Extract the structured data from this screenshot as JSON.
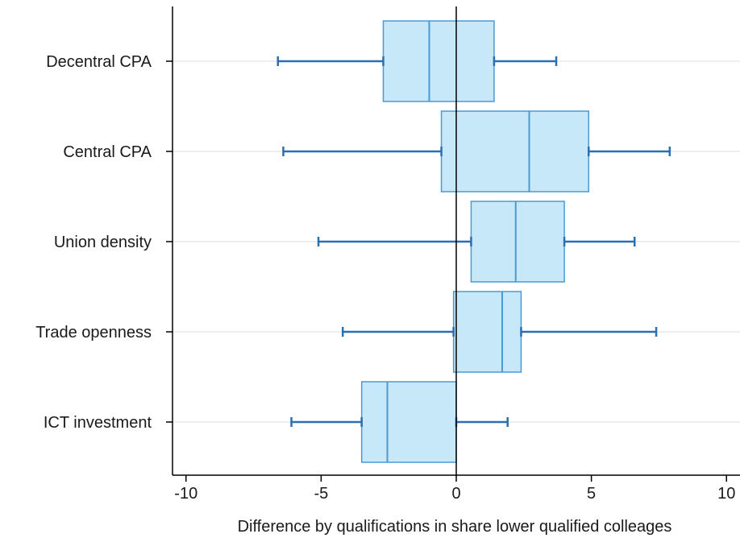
{
  "chart_data": {
    "type": "boxplot",
    "orientation": "horizontal",
    "title": "",
    "xlabel": "Difference by qualifications in share lower qualified colleages",
    "ylabel": "",
    "xlim": [
      -10.5,
      10.5
    ],
    "xticks": [
      -10,
      -5,
      0,
      5,
      10
    ],
    "xtick_labels": [
      "-10",
      "-5",
      "0",
      "5",
      "10"
    ],
    "grid": "horizontal",
    "reference_line_x": 0,
    "categories": [
      "Decentral CPA",
      "Central CPA",
      "Union density",
      "Trade openness",
      "ICT investment"
    ],
    "boxes": [
      {
        "label": "Decentral CPA",
        "whisker_low": -6.6,
        "q1": -2.7,
        "median": -1.0,
        "q3": 1.4,
        "whisker_high": 3.7
      },
      {
        "label": "Central CPA",
        "whisker_low": -6.4,
        "q1": -0.55,
        "median": 2.7,
        "q3": 4.9,
        "whisker_high": 7.9
      },
      {
        "label": "Union density",
        "whisker_low": -5.1,
        "q1": 0.55,
        "median": 2.2,
        "q3": 4.0,
        "whisker_high": 6.6
      },
      {
        "label": "Trade openness",
        "whisker_low": -4.2,
        "q1": -0.1,
        "median": 1.7,
        "q3": 2.4,
        "whisker_high": 7.4
      },
      {
        "label": "ICT investment",
        "whisker_low": -6.1,
        "q1": -3.5,
        "median": -2.55,
        "q3": 0.0,
        "whisker_high": 1.9
      }
    ],
    "colors": {
      "box_fill": "#c7e8f8",
      "box_stroke": "#4a9ad4",
      "whisker": "#2a6fb0",
      "median": "#4a9ad4",
      "grid": "#dedede",
      "axis": "#000000",
      "ref_line": "#000000"
    }
  }
}
